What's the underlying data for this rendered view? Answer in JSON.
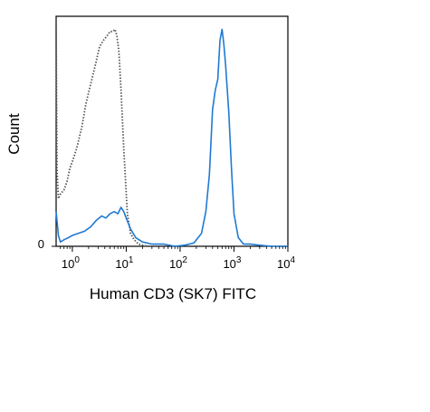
{
  "chart_data": {
    "type": "line",
    "xlabel": "Human CD3 (SK7) FITC",
    "ylabel": "Count",
    "x_scale": "log",
    "xlim": [
      0.5,
      10000
    ],
    "ylim": [
      0,
      1.06
    ],
    "x_ticks": [
      {
        "base": "10",
        "exp": "0",
        "value": 1
      },
      {
        "base": "10",
        "exp": "1",
        "value": 10
      },
      {
        "base": "10",
        "exp": "2",
        "value": 100
      },
      {
        "base": "10",
        "exp": "3",
        "value": 1000
      },
      {
        "base": "10",
        "exp": "4",
        "value": 10000
      }
    ],
    "y_ticks": [
      {
        "label": "0",
        "value": 0
      }
    ],
    "grid": false,
    "series": [
      {
        "style": "dotted",
        "color": "#555555",
        "x": [
          0.5,
          0.52,
          0.55,
          0.6,
          0.7,
          0.8,
          0.9,
          1.0,
          1.2,
          1.5,
          1.8,
          2.2,
          2.7,
          3.2,
          3.8,
          4.4,
          5.0,
          5.6,
          6.2,
          6.7,
          7.3,
          8.0,
          9.0,
          10.5,
          12.0,
          14.0,
          17.0,
          20.0,
          25.0
        ],
        "y": [
          1.0,
          0.35,
          0.22,
          0.24,
          0.26,
          0.3,
          0.36,
          0.39,
          0.45,
          0.55,
          0.66,
          0.75,
          0.84,
          0.92,
          0.95,
          0.97,
          0.99,
          0.99,
          1.0,
          0.97,
          0.9,
          0.72,
          0.45,
          0.15,
          0.06,
          0.03,
          0.01,
          0.005,
          0.0
        ]
      },
      {
        "style": "solid",
        "color": "#1f7ad2",
        "x": [
          0.5,
          0.55,
          0.6,
          0.7,
          0.85,
          1.0,
          1.3,
          1.7,
          2.2,
          2.8,
          3.5,
          4.2,
          5.0,
          6.0,
          7.0,
          8.0,
          9.0,
          10.0,
          12.0,
          15.0,
          20.0,
          30.0,
          50.0,
          80.0,
          120.0,
          180.0,
          250.0,
          300.0,
          350.0,
          400.0,
          450.0,
          500.0,
          550.0,
          600.0,
          650.0,
          700.0,
          800.0,
          900.0,
          1000.0,
          1200.0,
          1500.0,
          2000.0,
          3000.0,
          5000.0,
          10000.0
        ],
        "y": [
          0.16,
          0.05,
          0.02,
          0.03,
          0.04,
          0.05,
          0.06,
          0.07,
          0.09,
          0.12,
          0.14,
          0.13,
          0.15,
          0.16,
          0.15,
          0.18,
          0.16,
          0.13,
          0.08,
          0.04,
          0.02,
          0.01,
          0.01,
          0.0,
          0.005,
          0.015,
          0.06,
          0.16,
          0.33,
          0.63,
          0.72,
          0.77,
          0.95,
          1.0,
          0.93,
          0.83,
          0.62,
          0.35,
          0.15,
          0.04,
          0.01,
          0.01,
          0.005,
          0.0,
          0.0
        ]
      }
    ]
  }
}
